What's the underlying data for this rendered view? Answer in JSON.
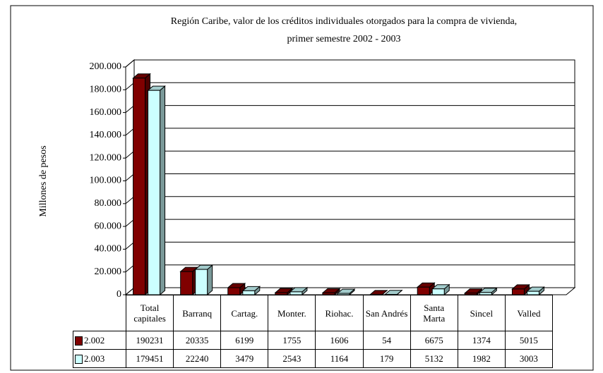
{
  "chart_data": {
    "type": "bar",
    "title": "Región Caribe, valor de los créditos individuales otorgados para la compra de vivienda,",
    "subtitle": "primer semestre 2002 - 2003",
    "y_label": "Millones de pesos",
    "categories": [
      "Total capitales",
      "Barranq",
      "Cartag.",
      "Monter.",
      "Riohac.",
      "San Andrés",
      "Santa Marta",
      "Sincel",
      "Valled"
    ],
    "series": [
      {
        "name": "2.002",
        "color": "#800000",
        "values": [
          190231,
          20335,
          6199,
          1755,
          1606,
          54,
          6675,
          1374,
          5015
        ]
      },
      {
        "name": "2.003",
        "color": "#ccffff",
        "values": [
          179451,
          22240,
          3479,
          2543,
          1164,
          179,
          5132,
          1982,
          3003
        ]
      }
    ],
    "ylim": [
      0,
      200000
    ],
    "yticks": [
      0,
      {
        "value": 20000,
        "label": "20.000"
      },
      {
        "value": 40000,
        "label": "40.000"
      },
      {
        "value": 60000,
        "label": "60.000"
      },
      {
        "value": 80000,
        "label": "80.000"
      },
      {
        "value": 100000,
        "label": "100.000"
      },
      {
        "value": 120000,
        "label": "120.000"
      },
      {
        "value": 140000,
        "label": "140.000"
      },
      {
        "value": 160000,
        "label": "160.000"
      },
      {
        "value": 180000,
        "label": "180.000"
      },
      {
        "value": 200000,
        "label": "200.000"
      }
    ],
    "grid": true
  }
}
